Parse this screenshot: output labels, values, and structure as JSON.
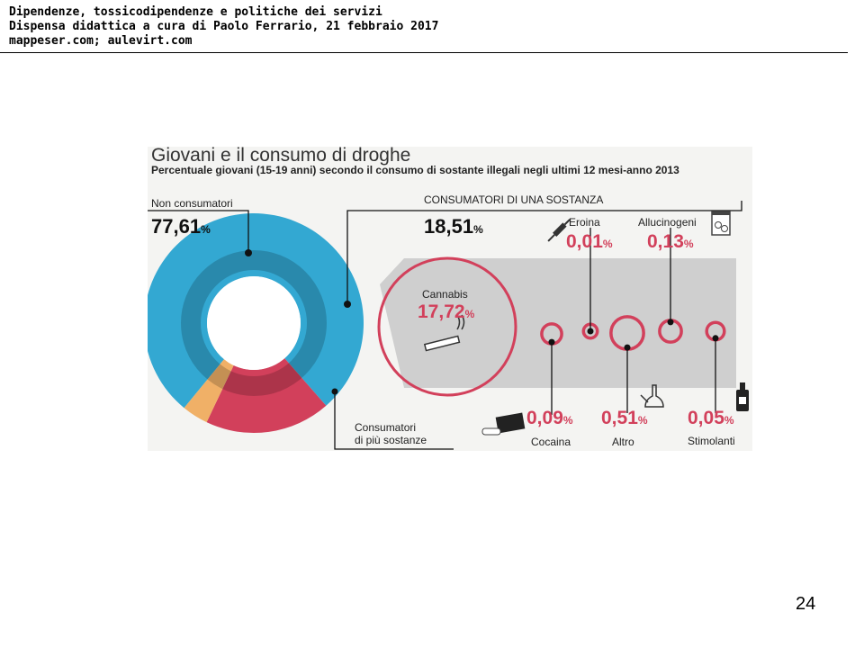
{
  "header": {
    "line1": "Dipendenze, tossicodipendenze e politiche dei servizi",
    "line2": "Dispensa didattica a cura di Paolo Ferrario, 21 febbraio 2017",
    "line3": "mappeser.com; aulevirt.com"
  },
  "page_number": "24",
  "chart_data": {
    "type": "pie",
    "title": "Giovani e il consumo di droghe",
    "subtitle": "Percentuale giovani (15-19 anni) secondo il consumo di sostante illegali negli ultimi 12 mesi-anno 2013",
    "unit": "%",
    "slices": [
      {
        "label": "Non consumatori",
        "value": 77.61,
        "display": "77,61",
        "color": "#33a8d2"
      },
      {
        "label": "CONSUMATORI DI UNA SOSTANZA",
        "value": 18.51,
        "display": "18,51",
        "color": "#d2405b"
      },
      {
        "label": "Consumatori di più sostanze",
        "label_line1": "Consumatori",
        "label_line2": "di più sostanze",
        "value": 3.88,
        "color": "#f0b067"
      }
    ],
    "breakdown": {
      "of": "CONSUMATORI DI UNA SOSTANZA",
      "items": [
        {
          "label": "Cannabis",
          "value": 17.72,
          "display": "17,72",
          "icon": "joint-icon"
        },
        {
          "label": "Cocaina",
          "value": 0.09,
          "display": "0,09",
          "icon": "cocaine-icon"
        },
        {
          "label": "Eroina",
          "value": 0.01,
          "display": "0,01",
          "icon": "syringe-icon"
        },
        {
          "label": "Altro",
          "value": 0.51,
          "display": "0,51",
          "icon": "bong-icon"
        },
        {
          "label": "Allucinogeni",
          "value": 0.13,
          "display": "0,13",
          "icon": "pills-bag-icon"
        },
        {
          "label": "Stimolanti",
          "value": 0.05,
          "display": "0,05",
          "icon": "bottle-icon"
        }
      ]
    },
    "colors": {
      "accent": "#d2405b",
      "donut_blue": "#33a8d2",
      "donut_inner": "#2a8fae",
      "orange": "#f0b067",
      "arrow_gray": "#cfcfcf"
    }
  }
}
